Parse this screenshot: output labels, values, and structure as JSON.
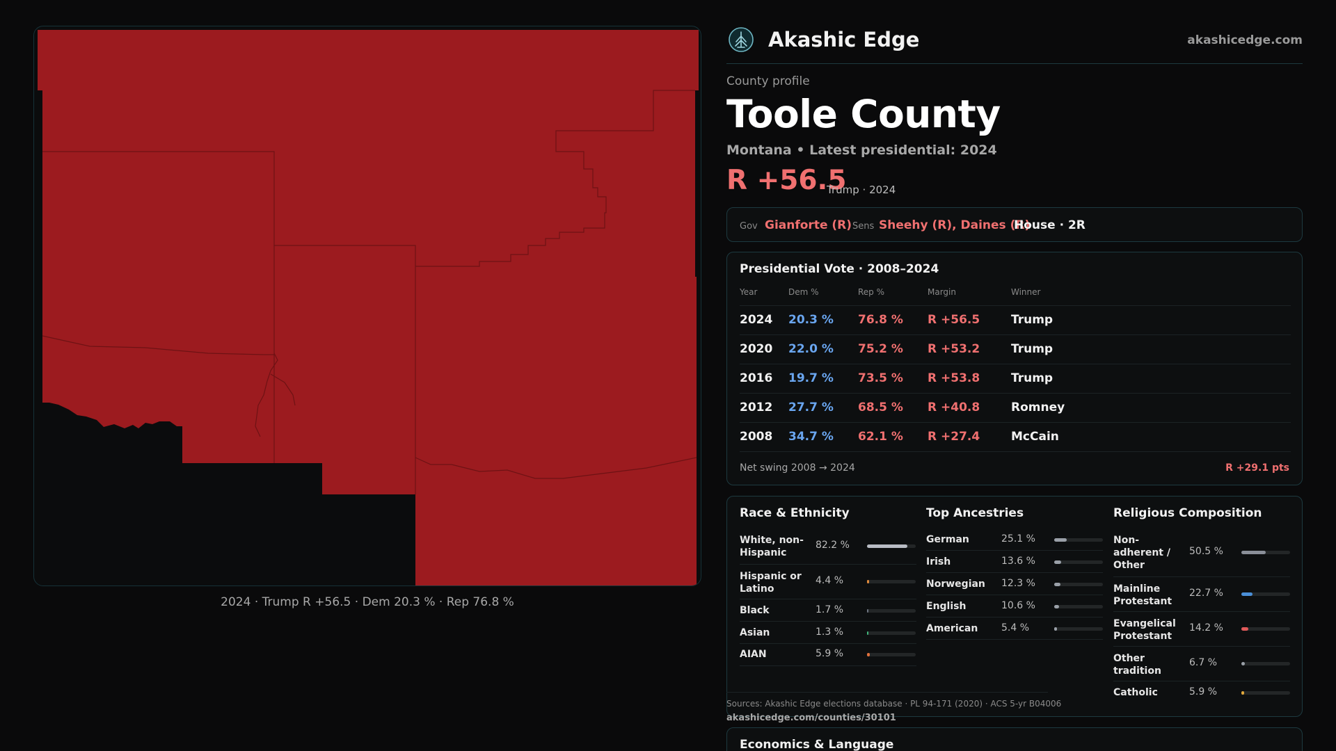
{
  "map": {
    "caption": "2024 · Trump R +56.5 · Dem 20.3 % · Rep 76.8 %",
    "fill_color": "#9c1b1f",
    "border_color": "#163238"
  },
  "brand": {
    "name": "Akashic Edge",
    "url": "akashicedge.com",
    "logo_icon": "tree-circle-icon"
  },
  "profile": {
    "eyebrow": "County profile",
    "title": "Toole County",
    "subtitle": "Montana • Latest presidential: 2024",
    "headline_margin": "R +56.5",
    "headline_note": "Trump · 2024"
  },
  "officials": {
    "gov_label": "Gov",
    "gov_value": "Gianforte (R)",
    "sens_label": "Sens",
    "sens_value": "Sheehy (R), Daines (R)",
    "house": "House · 2R"
  },
  "vote": {
    "title": "Presidential Vote · 2008–2024",
    "headers": [
      "Year",
      "Dem %",
      "Rep %",
      "Margin",
      "Winner"
    ],
    "rows": [
      {
        "year": "2024",
        "dem": "20.3 %",
        "rep": "76.8 %",
        "margin": "R +56.5",
        "winner": "Trump"
      },
      {
        "year": "2020",
        "dem": "22.0 %",
        "rep": "75.2 %",
        "margin": "R +53.2",
        "winner": "Trump"
      },
      {
        "year": "2016",
        "dem": "19.7 %",
        "rep": "73.5 %",
        "margin": "R +53.8",
        "winner": "Trump"
      },
      {
        "year": "2012",
        "dem": "27.7 %",
        "rep": "68.5 %",
        "margin": "R +40.8",
        "winner": "Romney"
      },
      {
        "year": "2008",
        "dem": "34.7 %",
        "rep": "62.1 %",
        "margin": "R +27.4",
        "winner": "McCain"
      }
    ],
    "swing_label": "Net swing 2008 → 2024",
    "swing_value": "R +29.1 pts"
  },
  "race": {
    "title": "Race & Ethnicity",
    "rows": [
      {
        "label": "White, non-Hispanic",
        "pct": "82.2 %",
        "value": 82.2,
        "color": "#b8bcc4"
      },
      {
        "label": "Hispanic or Latino",
        "pct": "4.4 %",
        "value": 4.4,
        "color": "#e08a3c"
      },
      {
        "label": "Black",
        "pct": "1.7 %",
        "value": 1.7,
        "color": "#6e7480"
      },
      {
        "label": "Asian",
        "pct": "1.3 %",
        "value": 1.3,
        "color": "#3fb57a"
      },
      {
        "label": "AIAN",
        "pct": "5.9 %",
        "value": 5.9,
        "color": "#e0703c"
      }
    ]
  },
  "ancestry": {
    "title": "Top Ancestries",
    "rows": [
      {
        "label": "German",
        "pct": "25.1 %",
        "value": 25.1,
        "color": "#9aa0a8"
      },
      {
        "label": "Irish",
        "pct": "13.6 %",
        "value": 13.6,
        "color": "#9aa0a8"
      },
      {
        "label": "Norwegian",
        "pct": "12.3 %",
        "value": 12.3,
        "color": "#9aa0a8"
      },
      {
        "label": "English",
        "pct": "10.6 %",
        "value": 10.6,
        "color": "#9aa0a8"
      },
      {
        "label": "American",
        "pct": "5.4 %",
        "value": 5.4,
        "color": "#9aa0a8"
      }
    ]
  },
  "religion": {
    "title": "Religious Composition",
    "rows": [
      {
        "label": "Non-adherent / Other",
        "pct": "50.5 %",
        "value": 50.5,
        "color": "#8a8f98"
      },
      {
        "label": "Mainline Protestant",
        "pct": "22.7 %",
        "value": 22.7,
        "color": "#4a8fd8"
      },
      {
        "label": "Evangelical Protestant",
        "pct": "14.2 %",
        "value": 14.2,
        "color": "#e05a5a"
      },
      {
        "label": "Other tradition",
        "pct": "6.7 %",
        "value": 6.7,
        "color": "#9aa0a8"
      },
      {
        "label": "Catholic",
        "pct": "5.9 %",
        "value": 5.9,
        "color": "#e0a83c"
      }
    ]
  },
  "sources": {
    "text": "Sources: Akashic Edge elections database · PL 94-171 (2020) · ACS 5-yr B04006",
    "url": "akashicedge.com/counties/30101"
  },
  "econ": {
    "title": "Economics & Language"
  }
}
